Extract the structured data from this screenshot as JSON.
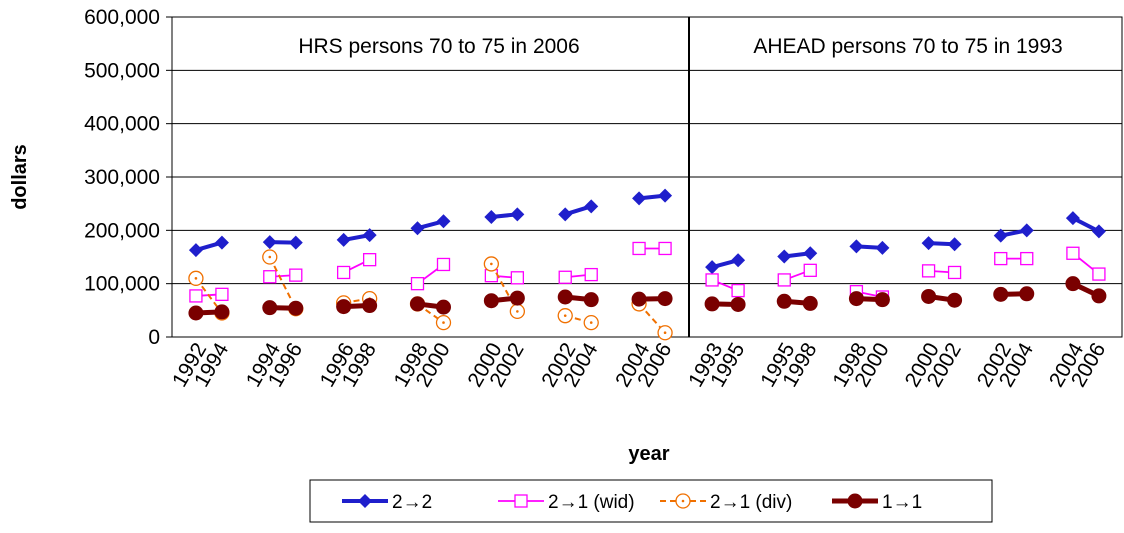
{
  "chart_data": {
    "type": "line",
    "ylabel": "dollars",
    "xlabel": "year",
    "ylim": [
      0,
      600000
    ],
    "yticks": [
      "0",
      "100,000",
      "200,000",
      "300,000",
      "400,000",
      "500,000",
      "600,000"
    ],
    "grid": "horizontal",
    "legend_position": "bottom",
    "panels": [
      {
        "title": "HRS persons 70 to 75 in 2006"
      },
      {
        "title": "AHEAD persons 70 to 75 in 1993"
      }
    ],
    "periods": [
      {
        "x": [
          "1992",
          "1994"
        ],
        "panel": 0
      },
      {
        "x": [
          "1994",
          "1996"
        ],
        "panel": 0
      },
      {
        "x": [
          "1996",
          "1998"
        ],
        "panel": 0
      },
      {
        "x": [
          "1998",
          "2000"
        ],
        "panel": 0
      },
      {
        "x": [
          "2000",
          "2002"
        ],
        "panel": 0
      },
      {
        "x": [
          "2002",
          "2004"
        ],
        "panel": 0
      },
      {
        "x": [
          "2004",
          "2006"
        ],
        "panel": 0
      },
      {
        "x": [
          "1993",
          "1995"
        ],
        "panel": 1
      },
      {
        "x": [
          "1995",
          "1998"
        ],
        "panel": 1
      },
      {
        "x": [
          "1998",
          "2000"
        ],
        "panel": 1
      },
      {
        "x": [
          "2000",
          "2002"
        ],
        "panel": 1
      },
      {
        "x": [
          "2002",
          "2004"
        ],
        "panel": 1
      },
      {
        "x": [
          "2004",
          "2006"
        ],
        "panel": 1
      }
    ],
    "series": [
      {
        "name": "2→2",
        "color": "#1f1fcc",
        "marker": "diamond",
        "values": [
          [
            163000,
            177000
          ],
          [
            178000,
            177000
          ],
          [
            182000,
            191000
          ],
          [
            204000,
            217000
          ],
          [
            225000,
            230000
          ],
          [
            230000,
            245000
          ],
          [
            260000,
            265000
          ],
          [
            131000,
            144000
          ],
          [
            151000,
            157000
          ],
          [
            170000,
            167000
          ],
          [
            176000,
            174000
          ],
          [
            190000,
            200000
          ],
          [
            223000,
            198000
          ]
        ]
      },
      {
        "name": "2→1 (wid)",
        "color": "#ff00ff",
        "marker": "square",
        "values": [
          [
            77000,
            80000
          ],
          [
            113000,
            116000
          ],
          [
            121000,
            145000
          ],
          [
            100000,
            136000
          ],
          [
            115000,
            111000
          ],
          [
            112000,
            117000
          ],
          [
            166000,
            166000
          ],
          [
            107000,
            87000
          ],
          [
            107000,
            125000
          ],
          [
            85000,
            75000
          ],
          [
            124000,
            121000
          ],
          [
            147000,
            147000
          ],
          [
            157000,
            118000
          ]
        ]
      },
      {
        "name": "2→1 (div)",
        "color": "#f07000",
        "marker": "circle",
        "values": [
          [
            110000,
            45000
          ],
          [
            150000,
            53000
          ],
          [
            64000,
            72000
          ],
          [
            62000,
            27000
          ],
          [
            137000,
            48000
          ],
          [
            40000,
            27000
          ],
          [
            62000,
            8000
          ],
          null,
          null,
          null,
          null,
          null,
          null
        ]
      },
      {
        "name": "1→1",
        "color": "#7a0000",
        "marker": "dot",
        "values": [
          [
            45000,
            47000
          ],
          [
            55000,
            54000
          ],
          [
            57000,
            59000
          ],
          [
            62000,
            56000
          ],
          [
            68000,
            73000
          ],
          [
            75000,
            70000
          ],
          [
            71000,
            72000
          ],
          [
            62000,
            61000
          ],
          [
            67000,
            63000
          ],
          [
            72000,
            70000
          ],
          [
            76000,
            69000
          ],
          [
            80000,
            81000
          ],
          [
            100000,
            77000
          ]
        ]
      }
    ]
  }
}
